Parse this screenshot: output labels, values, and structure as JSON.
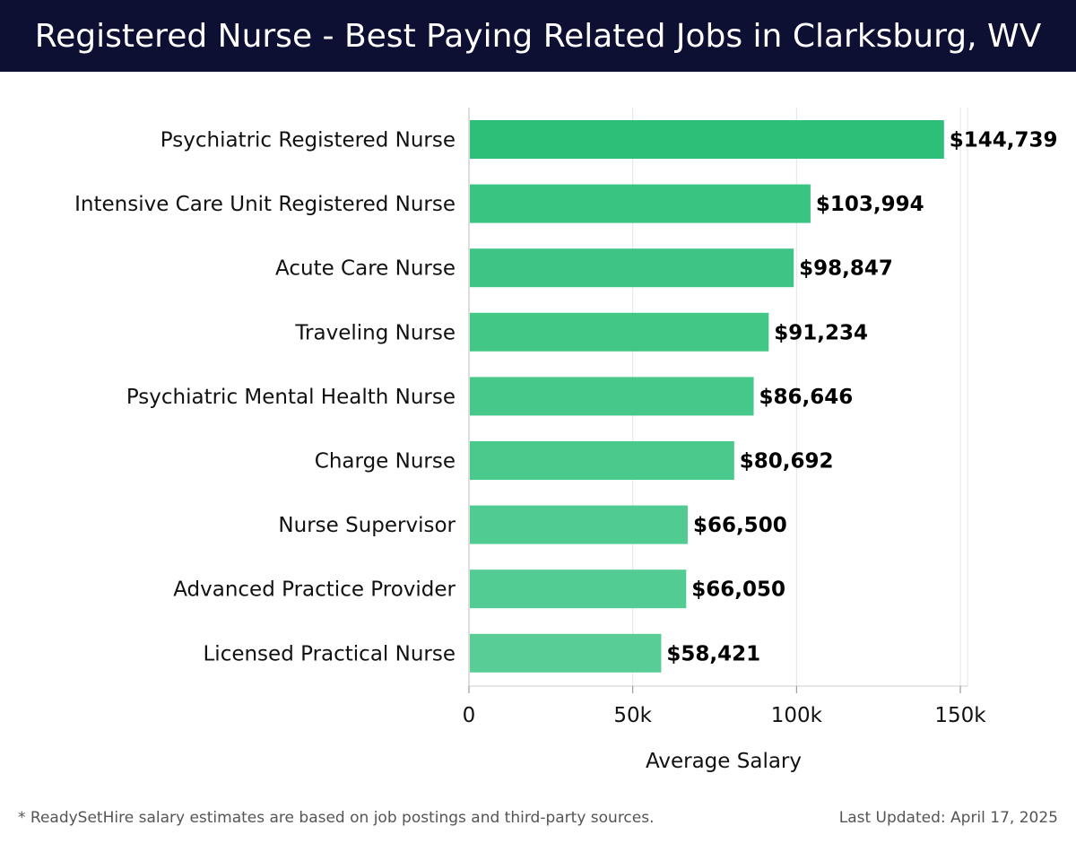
{
  "header": {
    "title": "Registered Nurse - Best Paying Related Jobs in Clarksburg, WV"
  },
  "footer": {
    "note": "* ReadySetHire salary estimates are based on job postings and third-party sources.",
    "updated": "Last Updated: April 17, 2025"
  },
  "chart_data": {
    "type": "bar",
    "orientation": "horizontal",
    "categories": [
      "Psychiatric Registered Nurse",
      "Intensive Care Unit Registered Nurse",
      "Acute Care Nurse",
      "Traveling Nurse",
      "Psychiatric Mental Health Nurse",
      "Charge Nurse",
      "Nurse Supervisor",
      "Advanced Practice Provider",
      "Licensed Practical Nurse"
    ],
    "values": [
      144739,
      103994,
      98847,
      91234,
      86646,
      80692,
      66500,
      66050,
      58421
    ],
    "value_labels": [
      "$144,739",
      "$103,994",
      "$98,847",
      "$91,234",
      "$86,646",
      "$80,692",
      "$66,500",
      "$66,050",
      "$58,421"
    ],
    "xlabel": "Average Salary",
    "ylabel": "",
    "xlim": [
      0,
      150000
    ],
    "xticks": [
      0,
      50000,
      100000,
      150000
    ],
    "xtick_labels": [
      "0",
      "50k",
      "100k",
      "150k"
    ],
    "grid": "vertical",
    "bar_colors": [
      "#2bbf78",
      "#39c482",
      "#3ec585",
      "#42c787",
      "#45c88a",
      "#4ac98c",
      "#50cb91",
      "#53cc93",
      "#58ce96"
    ]
  }
}
